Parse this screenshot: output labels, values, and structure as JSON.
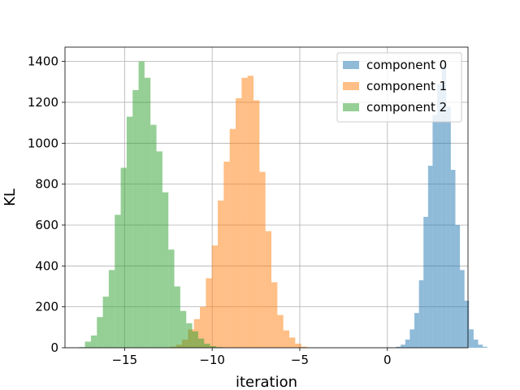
{
  "chart_data": {
    "type": "histogram",
    "xlabel": "iteration",
    "ylabel": "KL",
    "xlim": [
      -18.4,
      4.6
    ],
    "ylim": [
      0,
      1470
    ],
    "x_ticks": [
      -15,
      -10,
      -5,
      0
    ],
    "x_tick_labels": [
      "−15",
      "−10",
      "−5",
      "0"
    ],
    "y_ticks": [
      0,
      200,
      400,
      600,
      800,
      1000,
      1200,
      1400
    ],
    "y_tick_labels": [
      "0",
      "200",
      "400",
      "600",
      "800",
      "1000",
      "1200",
      "1400"
    ],
    "grid": true,
    "legend_position": "top-right",
    "series": [
      {
        "name": "component 0",
        "color": "#1f77b4",
        "opacity": 0.5,
        "bin_start": 0.5,
        "bin_width": 0.26,
        "counts": [
          5,
          15,
          40,
          90,
          170,
          330,
          640,
          890,
          1140,
          1290,
          1380,
          1180,
          870,
          600,
          380,
          230,
          90,
          40,
          15,
          5
        ]
      },
      {
        "name": "component 1",
        "color": "#ff7f0e",
        "opacity": 0.5,
        "bin_start": -12.4,
        "bin_width": 0.34,
        "counts": [
          5,
          15,
          40,
          90,
          140,
          200,
          340,
          500,
          720,
          910,
          1070,
          1220,
          1320,
          1330,
          1210,
          860,
          570,
          320,
          160,
          85,
          50,
          20,
          5
        ]
      },
      {
        "name": "component 2",
        "color": "#2ca02c",
        "opacity": 0.5,
        "bin_start": -17.6,
        "bin_width": 0.34,
        "counts": [
          3,
          30,
          60,
          150,
          250,
          380,
          650,
          880,
          1130,
          1260,
          1400,
          1320,
          1090,
          960,
          760,
          480,
          300,
          180,
          120,
          80,
          45,
          20,
          8,
          3
        ]
      }
    ]
  }
}
